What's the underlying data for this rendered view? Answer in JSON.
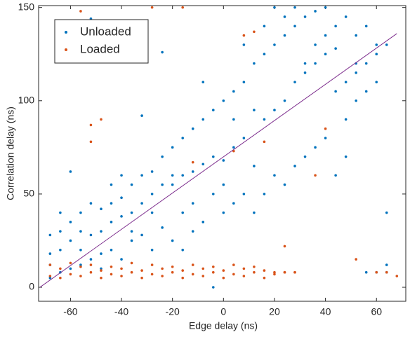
{
  "chart_data": {
    "type": "scatter",
    "xlabel": "Edge delay (ns)",
    "ylabel": "Correlation delay (ns)",
    "xlim": [
      -72.5,
      71.5
    ],
    "ylim": [
      -7.5,
      151
    ],
    "xticks": [
      -60,
      -40,
      -20,
      0,
      20,
      40,
      60
    ],
    "yticks": [
      0,
      50,
      100,
      150
    ],
    "legend": "upper left",
    "series": [
      {
        "name": "Unloaded",
        "color": "#0072bd",
        "x": [
          -68,
          -68,
          -68,
          -68,
          -64,
          -64,
          -64,
          -64,
          -60,
          -60,
          -60,
          -60,
          -56,
          -56,
          -56,
          -56,
          -52,
          -52,
          -52,
          -52,
          -48,
          -48,
          -48,
          -48,
          -44,
          -44,
          -44,
          -44,
          -40,
          -40,
          -40,
          -40,
          -36,
          -36,
          -36,
          -36,
          -32,
          -32,
          -32,
          -32,
          -28,
          -28,
          -28,
          -28,
          -24,
          -24,
          -24,
          -24,
          -20,
          -20,
          -20,
          -20,
          -16,
          -16,
          -16,
          -16,
          -12,
          -12,
          -12,
          -12,
          -8,
          -8,
          -8,
          -8,
          -4,
          -4,
          -4,
          -4,
          0,
          0,
          0,
          0,
          4,
          4,
          4,
          4,
          8,
          8,
          8,
          8,
          12,
          12,
          12,
          12,
          16,
          16,
          16,
          16,
          20,
          20,
          20,
          20,
          24,
          24,
          24,
          24,
          28,
          28,
          28,
          28,
          32,
          32,
          32,
          32,
          36,
          36,
          36,
          36,
          40,
          40,
          40,
          40,
          44,
          44,
          44,
          44,
          48,
          48,
          48,
          48,
          52,
          52,
          52,
          52,
          56,
          56,
          56,
          56,
          60,
          60,
          60,
          60,
          64,
          64,
          64,
          64
        ],
        "values": [
          5,
          12,
          18,
          28,
          8,
          20,
          30,
          40,
          10,
          25,
          35,
          62,
          12,
          20,
          30,
          40,
          15,
          28,
          45,
          144,
          10,
          18,
          30,
          42,
          20,
          35,
          45,
          55,
          15,
          38,
          48,
          60,
          25,
          30,
          40,
          55,
          28,
          45,
          60,
          92,
          20,
          40,
          50,
          62,
          32,
          55,
          70,
          126,
          25,
          55,
          60,
          75,
          20,
          40,
          60,
          80,
          30,
          45,
          62,
          85,
          35,
          66,
          90,
          110,
          0,
          50,
          70,
          95,
          40,
          55,
          68,
          100,
          45,
          75,
          90,
          105,
          50,
          80,
          110,
          130,
          40,
          65,
          95,
          120,
          50,
          90,
          125,
          140,
          60,
          95,
          130,
          150,
          55,
          100,
          135,
          145,
          65,
          110,
          140,
          150,
          70,
          115,
          120,
          145,
          75,
          120,
          130,
          148,
          80,
          125,
          135,
          150,
          60,
          105,
          128,
          140,
          70,
          90,
          110,
          145,
          100,
          115,
          120,
          135,
          105,
          120,
          140,
          8,
          110,
          125,
          130,
          8,
          40,
          130,
          8,
          12
        ]
      },
      {
        "name": "Loaded",
        "color": "#d95319",
        "x": [
          -68,
          -68,
          -64,
          -64,
          -60,
          -60,
          -56,
          -56,
          -52,
          -52,
          -48,
          -48,
          -44,
          -44,
          -40,
          -40,
          -36,
          -36,
          -32,
          -32,
          -28,
          -28,
          -24,
          -24,
          -20,
          -20,
          -16,
          -16,
          -12,
          -12,
          -8,
          -8,
          -4,
          -4,
          0,
          0,
          4,
          4,
          8,
          8,
          12,
          12,
          16,
          16,
          20,
          20,
          24,
          24,
          28,
          28,
          -56,
          -52,
          -52,
          -48,
          -28,
          -16,
          -12,
          4,
          8,
          12,
          16,
          24,
          36,
          40,
          52,
          60,
          64,
          68
        ],
        "values": [
          6,
          12,
          5,
          10,
          7,
          13,
          6,
          11,
          8,
          12,
          5,
          9,
          7,
          11,
          6,
          10,
          8,
          13,
          5,
          9,
          7,
          12,
          6,
          10,
          8,
          11,
          5,
          9,
          7,
          12,
          6,
          10,
          8,
          11,
          5,
          9,
          7,
          12,
          6,
          10,
          8,
          11,
          5,
          9,
          7,
          8,
          8,
          8,
          8,
          8,
          148,
          87,
          78,
          90,
          150,
          150,
          67,
          73,
          135,
          137,
          78,
          22,
          60,
          85,
          15,
          8,
          8,
          6
        ]
      }
    ],
    "fit": {
      "color": "#7e2f8e",
      "x": [
        -72,
        68
      ],
      "values": [
        0,
        136
      ]
    }
  }
}
